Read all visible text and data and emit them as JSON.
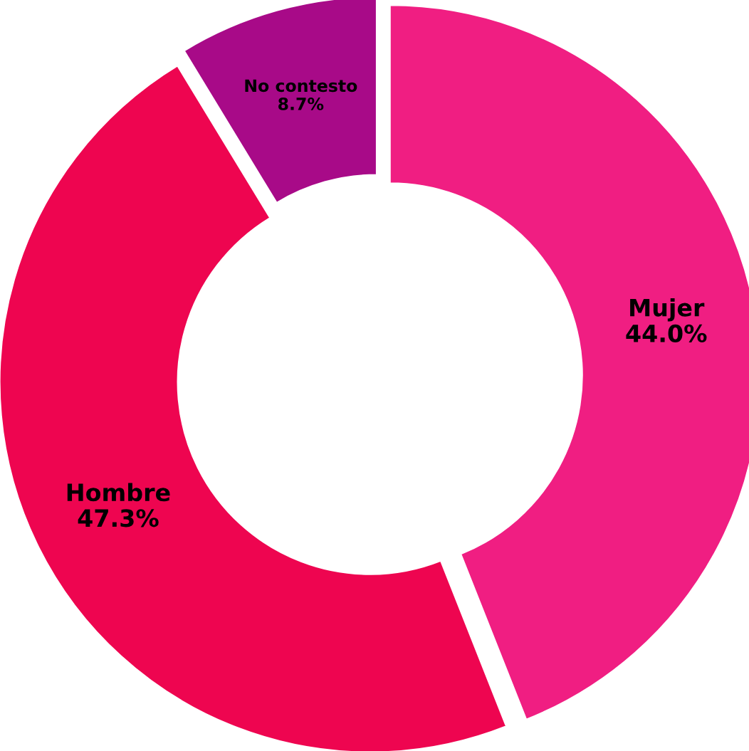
{
  "chart_data": {
    "type": "donut",
    "categories": [
      "Mujer",
      "Hombre",
      "No contesto"
    ],
    "values": [
      44.0,
      47.3,
      8.7
    ],
    "value_labels": [
      "44.0%",
      "47.3%",
      "8.7%"
    ],
    "colors": [
      "#f01e82",
      "#ee0550",
      "#a80a88"
    ],
    "legend": false
  }
}
